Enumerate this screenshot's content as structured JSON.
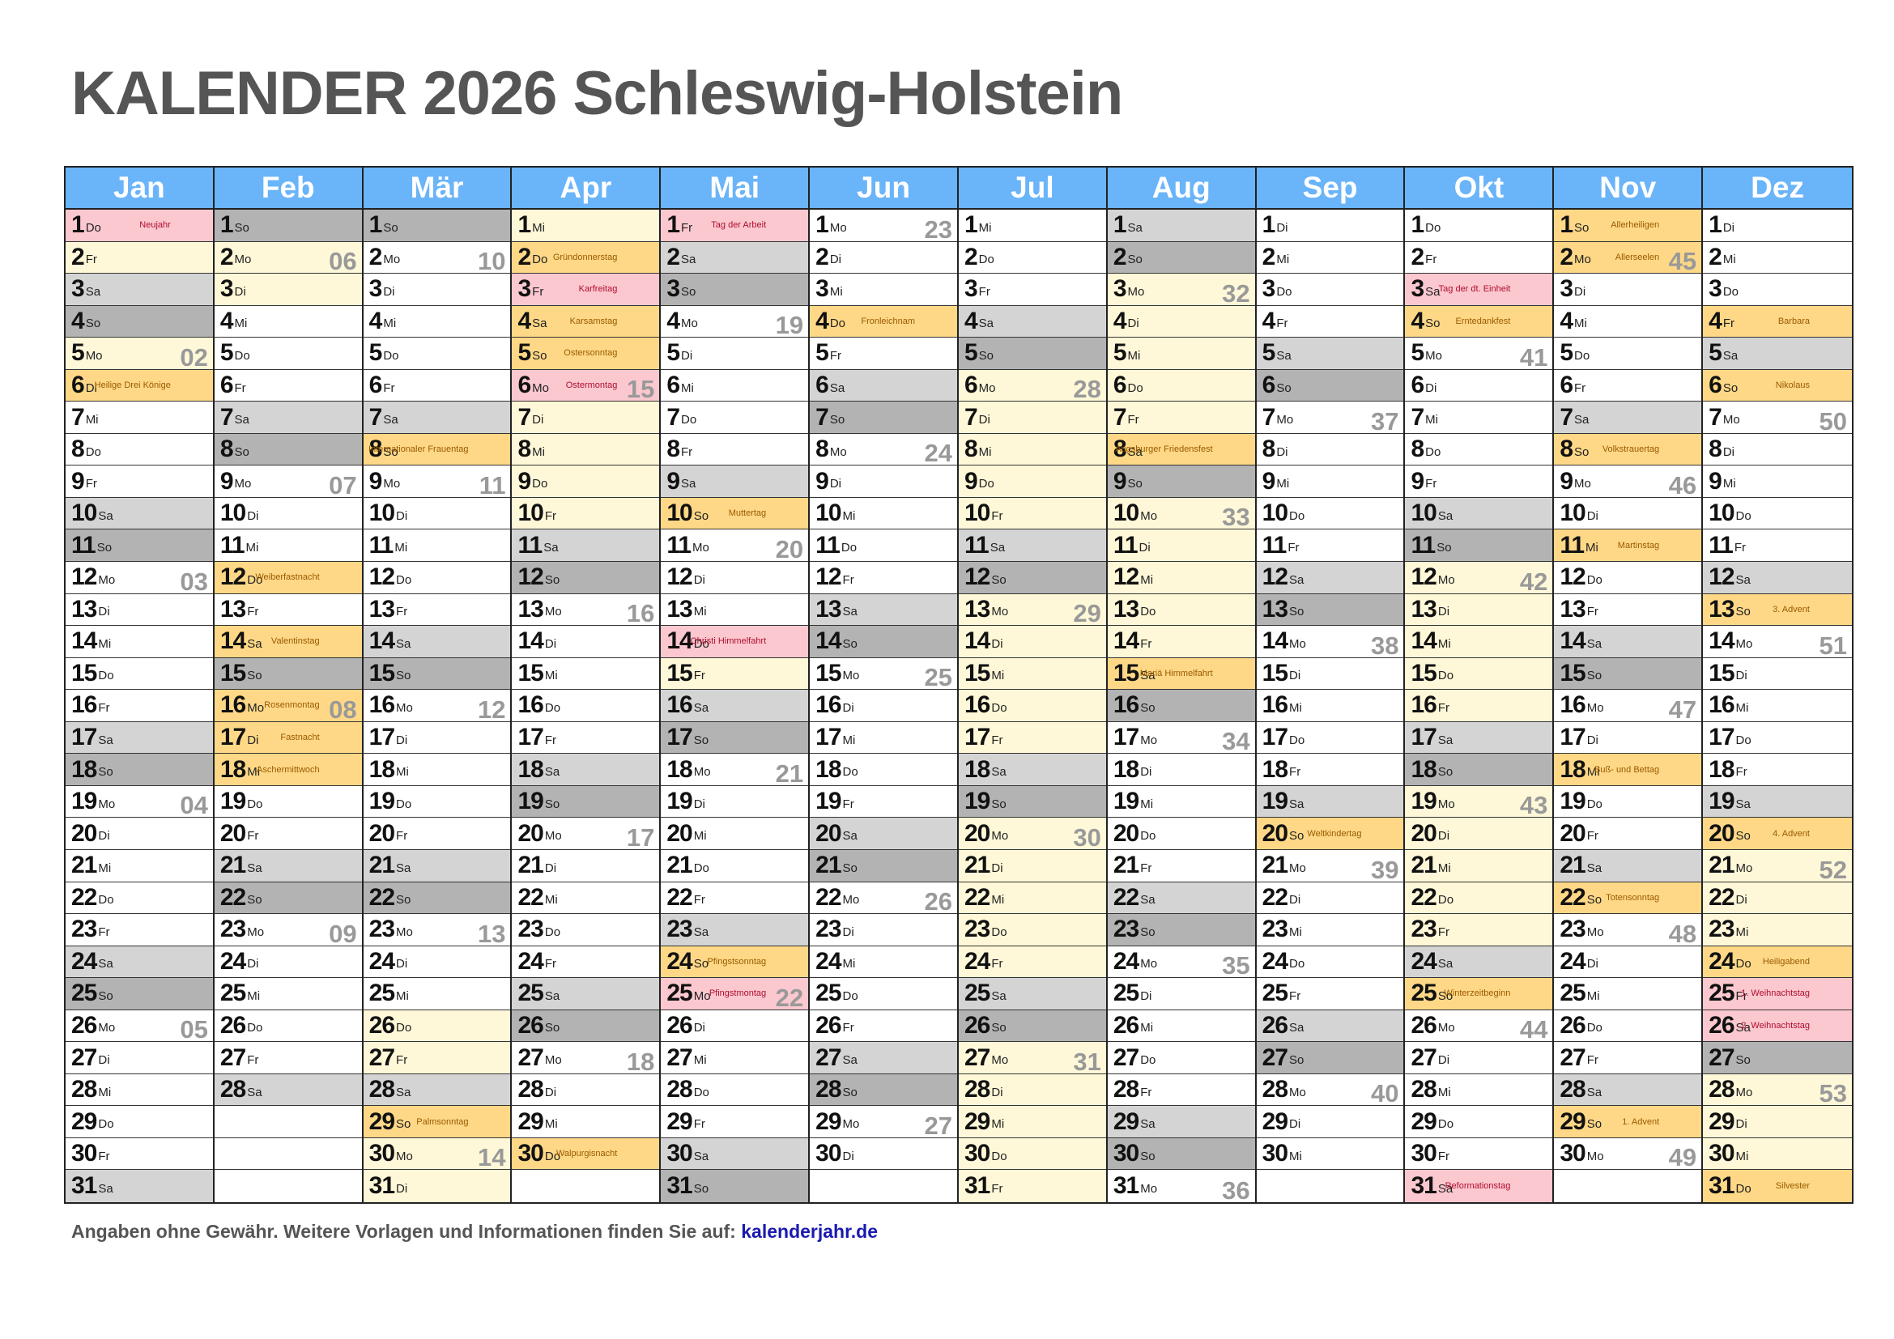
{
  "title": "KALENDER 2026 Schleswig-Holstein",
  "footer": {
    "text": "Angaben ohne Gewähr. Weitere Vorlagen und Informationen finden Sie auf:",
    "link": "kalenderjahr.de"
  },
  "colors": {
    "header": "#6ab4f9",
    "saturday": "#d4d4d4",
    "sunday": "#b3b3b3",
    "school_holiday": "#fff8d8",
    "public_holiday": "#fbc8cf",
    "observance": "#fed886"
  },
  "weekday_abbr": [
    "Mo",
    "Di",
    "Mi",
    "Do",
    "Fr",
    "Sa",
    "So"
  ],
  "months": [
    {
      "name": "Jan",
      "days": 31,
      "start": 3,
      "marks": {
        "1": [
          "Neujahr",
          "ph"
        ],
        "6": [
          "Heilige Drei Könige",
          "hol"
        ]
      },
      "school": [
        [
          1,
          6
        ]
      ]
    },
    {
      "name": "Feb",
      "days": 28,
      "start": 6,
      "marks": {
        "12": [
          "Weiberfastnacht",
          "hol"
        ],
        "14": [
          "Valentinstag",
          "hol"
        ],
        "16": [
          "Rosenmontag",
          "hol"
        ],
        "17": [
          "Fastnacht",
          "hol"
        ],
        "18": [
          "Aschermittwoch",
          "hol"
        ]
      },
      "school": [
        [
          2,
          3
        ]
      ]
    },
    {
      "name": "Mär",
      "days": 31,
      "start": 6,
      "marks": {
        "8": [
          "Internationaler Frauentag",
          "hol"
        ],
        "29": [
          "Palmsonntag",
          "hol"
        ]
      },
      "school": [
        [
          26,
          31
        ]
      ]
    },
    {
      "name": "Apr",
      "days": 30,
      "start": 2,
      "marks": {
        "2": [
          "Gründonnerstag",
          "hol"
        ],
        "3": [
          "Karfreitag",
          "ph"
        ],
        "4": [
          "Karsamstag",
          "hol"
        ],
        "5": [
          "Ostersonntag",
          "hol"
        ],
        "6": [
          "Ostermontag",
          "ph"
        ],
        "30": [
          "Walpurgisnacht",
          "hol"
        ]
      },
      "school": [
        [
          1,
          10
        ]
      ]
    },
    {
      "name": "Mai",
      "days": 31,
      "start": 4,
      "marks": {
        "1": [
          "Tag der Arbeit",
          "ph"
        ],
        "10": [
          "Muttertag",
          "hol"
        ],
        "14": [
          "Christi Himmelfahrt",
          "ph"
        ],
        "24": [
          "Pfingstsonntag",
          "hol"
        ],
        "25": [
          "Pfingstmontag",
          "ph"
        ]
      },
      "school": [
        [
          15,
          15
        ]
      ]
    },
    {
      "name": "Jun",
      "days": 30,
      "start": 0,
      "marks": {
        "4": [
          "Fronleichnam",
          "hol"
        ]
      },
      "school": []
    },
    {
      "name": "Jul",
      "days": 31,
      "start": 2,
      "marks": {},
      "school": [
        [
          6,
          31
        ]
      ]
    },
    {
      "name": "Aug",
      "days": 31,
      "start": 5,
      "marks": {
        "8": [
          "Augsburger Friedensfest",
          "hol"
        ],
        "15": [
          "Mariä Himmelfahrt",
          "hol"
        ]
      },
      "school": [
        [
          1,
          15
        ]
      ]
    },
    {
      "name": "Sep",
      "days": 30,
      "start": 1,
      "marks": {
        "20": [
          "Weltkindertag",
          "hol"
        ]
      },
      "school": []
    },
    {
      "name": "Okt",
      "days": 31,
      "start": 3,
      "marks": {
        "3": [
          "Tag der dt. Einheit",
          "ph"
        ],
        "4": [
          "Erntedankfest",
          "hol"
        ],
        "25": [
          "Winterzeitbeginn",
          "hol"
        ],
        "31": [
          "Reformationstag",
          "ph"
        ]
      },
      "school": [
        [
          12,
          24
        ]
      ]
    },
    {
      "name": "Nov",
      "days": 30,
      "start": 6,
      "marks": {
        "1": [
          "Allerheiligen",
          "hol"
        ],
        "2": [
          "Allerseelen",
          "hol"
        ],
        "8": [
          "Volkstrauertag",
          "hol"
        ],
        "11": [
          "Martinstag",
          "hol"
        ],
        "18": [
          "Buß- und Bettag",
          "hol"
        ],
        "22": [
          "Totensonntag",
          "hol"
        ],
        "29": [
          "1. Advent",
          "hol"
        ]
      },
      "school": []
    },
    {
      "name": "Dez",
      "days": 31,
      "start": 1,
      "marks": {
        "4": [
          "Barbara",
          "hol"
        ],
        "6": [
          "Nikolaus",
          "hol"
        ],
        "13": [
          "3. Advent",
          "hol"
        ],
        "20": [
          "4. Advent",
          "hol"
        ],
        "24": [
          "Heiligabend",
          "hol"
        ],
        "25": [
          "1. Weihnachtstag",
          "ph"
        ],
        "26": [
          "2. Weihnachtstag",
          "ph"
        ],
        "31": [
          "Silvester",
          "hol"
        ]
      },
      "school": [
        [
          21,
          31
        ]
      ]
    }
  ],
  "week_numbers": {
    "Jan": {
      "5": "02",
      "12": "03",
      "19": "04",
      "26": "05"
    },
    "Feb": {
      "2": "06",
      "9": "07",
      "16": "08",
      "23": "09"
    },
    "Mär": {
      "2": "10",
      "9": "11",
      "16": "12",
      "23": "13",
      "30": "14"
    },
    "Apr": {
      "6": "15",
      "13": "16",
      "20": "17",
      "27": "18"
    },
    "Mai": {
      "4": "19",
      "11": "20",
      "18": "21",
      "25": "22"
    },
    "Jun": {
      "1": "23",
      "8": "24",
      "15": "25",
      "22": "26",
      "29": "27"
    },
    "Jul": {
      "6": "28",
      "13": "29",
      "20": "30",
      "27": "31"
    },
    "Aug": {
      "3": "32",
      "10": "33",
      "17": "34",
      "24": "35",
      "31": "36"
    },
    "Sep": {
      "7": "37",
      "14": "38",
      "21": "39",
      "28": "40"
    },
    "Okt": {
      "5": "41",
      "12": "42",
      "19": "43",
      "26": "44"
    },
    "Nov": {
      "2": "45",
      "9": "46",
      "16": "47",
      "23": "48",
      "30": "49"
    },
    "Dez": {
      "7": "50",
      "14": "51",
      "21": "52",
      "28": "53"
    }
  }
}
